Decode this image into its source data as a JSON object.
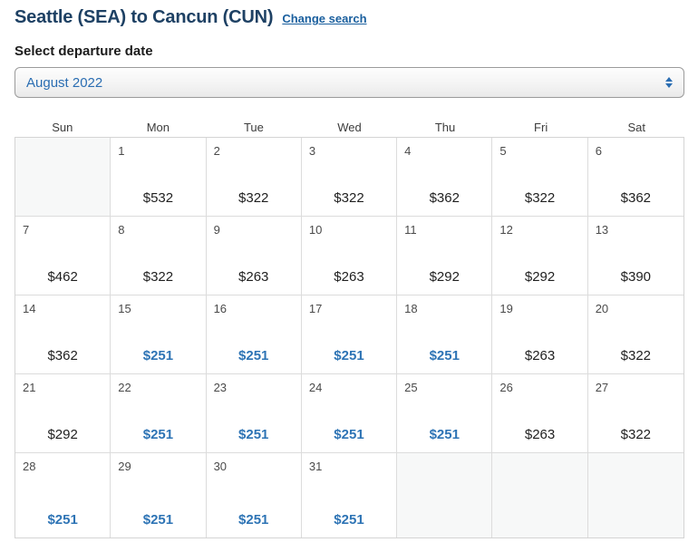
{
  "header": {
    "title": "Seattle (SEA) to Cancun (CUN)",
    "change_search_label": "Change search"
  },
  "departure": {
    "label": "Select departure date",
    "selected_month": "August 2022"
  },
  "calendar": {
    "day_headers": [
      "Sun",
      "Mon",
      "Tue",
      "Wed",
      "Thu",
      "Fri",
      "Sat"
    ],
    "weeks": [
      [
        {
          "day": "",
          "price": ""
        },
        {
          "day": "1",
          "price": "$532"
        },
        {
          "day": "2",
          "price": "$322"
        },
        {
          "day": "3",
          "price": "$322"
        },
        {
          "day": "4",
          "price": "$362"
        },
        {
          "day": "5",
          "price": "$322"
        },
        {
          "day": "6",
          "price": "$362"
        }
      ],
      [
        {
          "day": "7",
          "price": "$462"
        },
        {
          "day": "8",
          "price": "$322"
        },
        {
          "day": "9",
          "price": "$263"
        },
        {
          "day": "10",
          "price": "$263"
        },
        {
          "day": "11",
          "price": "$292"
        },
        {
          "day": "12",
          "price": "$292"
        },
        {
          "day": "13",
          "price": "$390"
        }
      ],
      [
        {
          "day": "14",
          "price": "$362"
        },
        {
          "day": "15",
          "price": "$251",
          "cheapest": true
        },
        {
          "day": "16",
          "price": "$251",
          "cheapest": true
        },
        {
          "day": "17",
          "price": "$251",
          "cheapest": true
        },
        {
          "day": "18",
          "price": "$251",
          "cheapest": true
        },
        {
          "day": "19",
          "price": "$263"
        },
        {
          "day": "20",
          "price": "$322"
        }
      ],
      [
        {
          "day": "21",
          "price": "$292"
        },
        {
          "day": "22",
          "price": "$251",
          "cheapest": true
        },
        {
          "day": "23",
          "price": "$251",
          "cheapest": true
        },
        {
          "day": "24",
          "price": "$251",
          "cheapest": true
        },
        {
          "day": "25",
          "price": "$251",
          "cheapest": true
        },
        {
          "day": "26",
          "price": "$263"
        },
        {
          "day": "27",
          "price": "$322"
        }
      ],
      [
        {
          "day": "28",
          "price": "$251",
          "cheapest": true
        },
        {
          "day": "29",
          "price": "$251",
          "cheapest": true
        },
        {
          "day": "30",
          "price": "$251",
          "cheapest": true
        },
        {
          "day": "31",
          "price": "$251",
          "cheapest": true
        },
        {
          "day": "",
          "price": ""
        },
        {
          "day": "",
          "price": ""
        },
        {
          "day": "",
          "price": ""
        }
      ]
    ]
  },
  "colors": {
    "title_navy": "#1e4164",
    "link_blue": "#1a5f9e",
    "select_text_blue": "#2a6db2",
    "cheapest_price_blue": "#2e74b5",
    "cell_border": "#dcdcdc",
    "empty_cell_bg": "#f7f8f8"
  }
}
